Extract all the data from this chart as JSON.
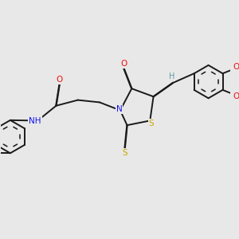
{
  "bg_color": "#e8e8e8",
  "bond_color": "#1a1a1a",
  "bond_width": 1.4,
  "dbo": 0.015,
  "atom_colors": {
    "O": "#ee1111",
    "N": "#1111ee",
    "S": "#c8a800",
    "H_label": "#5b9ba3",
    "C": "#1a1a1a"
  },
  "font_size": 7.5,
  "fig_size": [
    3.0,
    3.0
  ],
  "dpi": 100
}
